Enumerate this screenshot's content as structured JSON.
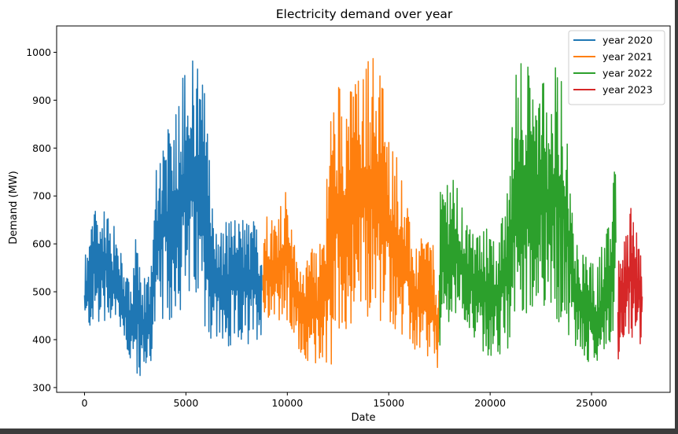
{
  "chart_data": {
    "type": "line",
    "title": "Electricity demand over year",
    "xlabel": "Date",
    "ylabel": "Demand (MW)",
    "xlim": [
      -1375,
      28875
    ],
    "ylim": [
      290,
      1055
    ],
    "xticks": [
      0,
      5000,
      10000,
      15000,
      20000,
      25000
    ],
    "xtick_labels": [
      "0",
      "5000",
      "10000",
      "15000",
      "20000",
      "25000"
    ],
    "yticks": [
      300,
      400,
      500,
      600,
      700,
      800,
      900,
      1000
    ],
    "ytick_labels": [
      "300",
      "400",
      "500",
      "600",
      "700",
      "800",
      "900",
      "1000"
    ],
    "grid": false,
    "legend_position": "top-right",
    "series": [
      {
        "name": "year 2020",
        "color": "#1f77b4",
        "x": [
          0,
          250,
          500,
          750,
          1000,
          1250,
          1500,
          1750,
          2000,
          2250,
          2500,
          2750,
          3000,
          3250,
          3500,
          3750,
          4000,
          4250,
          4500,
          4750,
          5000,
          5250,
          5500,
          5750,
          6000,
          6250,
          6500,
          6750,
          7000,
          7250,
          7500,
          7750,
          8000,
          8250,
          8500,
          8750
        ],
        "min": [
          415,
          420,
          430,
          440,
          440,
          440,
          430,
          420,
          400,
          340,
          325,
          325,
          330,
          345,
          400,
          440,
          450,
          440,
          450,
          460,
          470,
          470,
          460,
          450,
          420,
          390,
          390,
          380,
          385,
          390,
          390,
          390,
          390,
          395,
          400,
          410
        ],
        "max": [
          570,
          605,
          695,
          650,
          715,
          620,
          640,
          590,
          545,
          510,
          615,
          540,
          525,
          560,
          740,
          825,
          830,
          850,
          900,
          940,
          955,
          980,
          985,
          950,
          915,
          690,
          665,
          620,
          655,
          655,
          645,
          660,
          650,
          655,
          640,
          595
        ]
      },
      {
        "name": "year 2021",
        "color": "#ff7f0e",
        "x": [
          8800,
          9100,
          9400,
          9700,
          10000,
          10300,
          10600,
          10900,
          11200,
          11500,
          11800,
          12100,
          12400,
          12700,
          13000,
          13300,
          13600,
          13900,
          14200,
          14500,
          14800,
          15100,
          15400,
          15700,
          16000,
          16300,
          16600,
          16900,
          17200,
          17500
        ],
        "min": [
          430,
          445,
          450,
          435,
          420,
          400,
          375,
          360,
          350,
          345,
          360,
          340,
          380,
          410,
          430,
          440,
          440,
          450,
          445,
          440,
          440,
          430,
          420,
          410,
          390,
          380,
          370,
          350,
          330,
          335
        ],
        "max": [
          640,
          665,
          650,
          700,
          740,
          600,
          580,
          555,
          590,
          575,
          640,
          860,
          950,
          945,
          910,
          965,
          940,
          990,
          1000,
          1005,
          890,
          820,
          790,
          745,
          650,
          585,
          610,
          640,
          595,
          510
        ]
      },
      {
        "name": "year 2022",
        "color": "#2ca02c",
        "x": [
          17500,
          17800,
          18100,
          18400,
          18700,
          19000,
          19300,
          19600,
          19900,
          20200,
          20500,
          20800,
          21100,
          21400,
          21700,
          22000,
          22300,
          22600,
          22900,
          23200,
          23500,
          23800,
          24100,
          24400,
          24700,
          25000,
          25300,
          25600,
          25900,
          26200
        ],
        "min": [
          370,
          400,
          420,
          440,
          430,
          420,
          400,
          380,
          360,
          375,
          370,
          380,
          390,
          420,
          450,
          470,
          470,
          470,
          460,
          450,
          430,
          420,
          380,
          360,
          350,
          340,
          330,
          380,
          395,
          420
        ],
        "max": [
          700,
          760,
          740,
          720,
          660,
          640,
          610,
          620,
          640,
          600,
          640,
          690,
          850,
          1020,
          1015,
          930,
          895,
          960,
          895,
          970,
          980,
          880,
          650,
          610,
          575,
          560,
          550,
          615,
          640,
          785
        ]
      },
      {
        "name": "year 2023",
        "color": "#d62728",
        "x": [
          26300,
          26500,
          26700,
          26900,
          27100,
          27300,
          27500
        ],
        "min": [
          355,
          400,
          420,
          410,
          400,
          390,
          380
        ],
        "max": [
          560,
          580,
          620,
          675,
          670,
          610,
          600
        ]
      }
    ]
  }
}
